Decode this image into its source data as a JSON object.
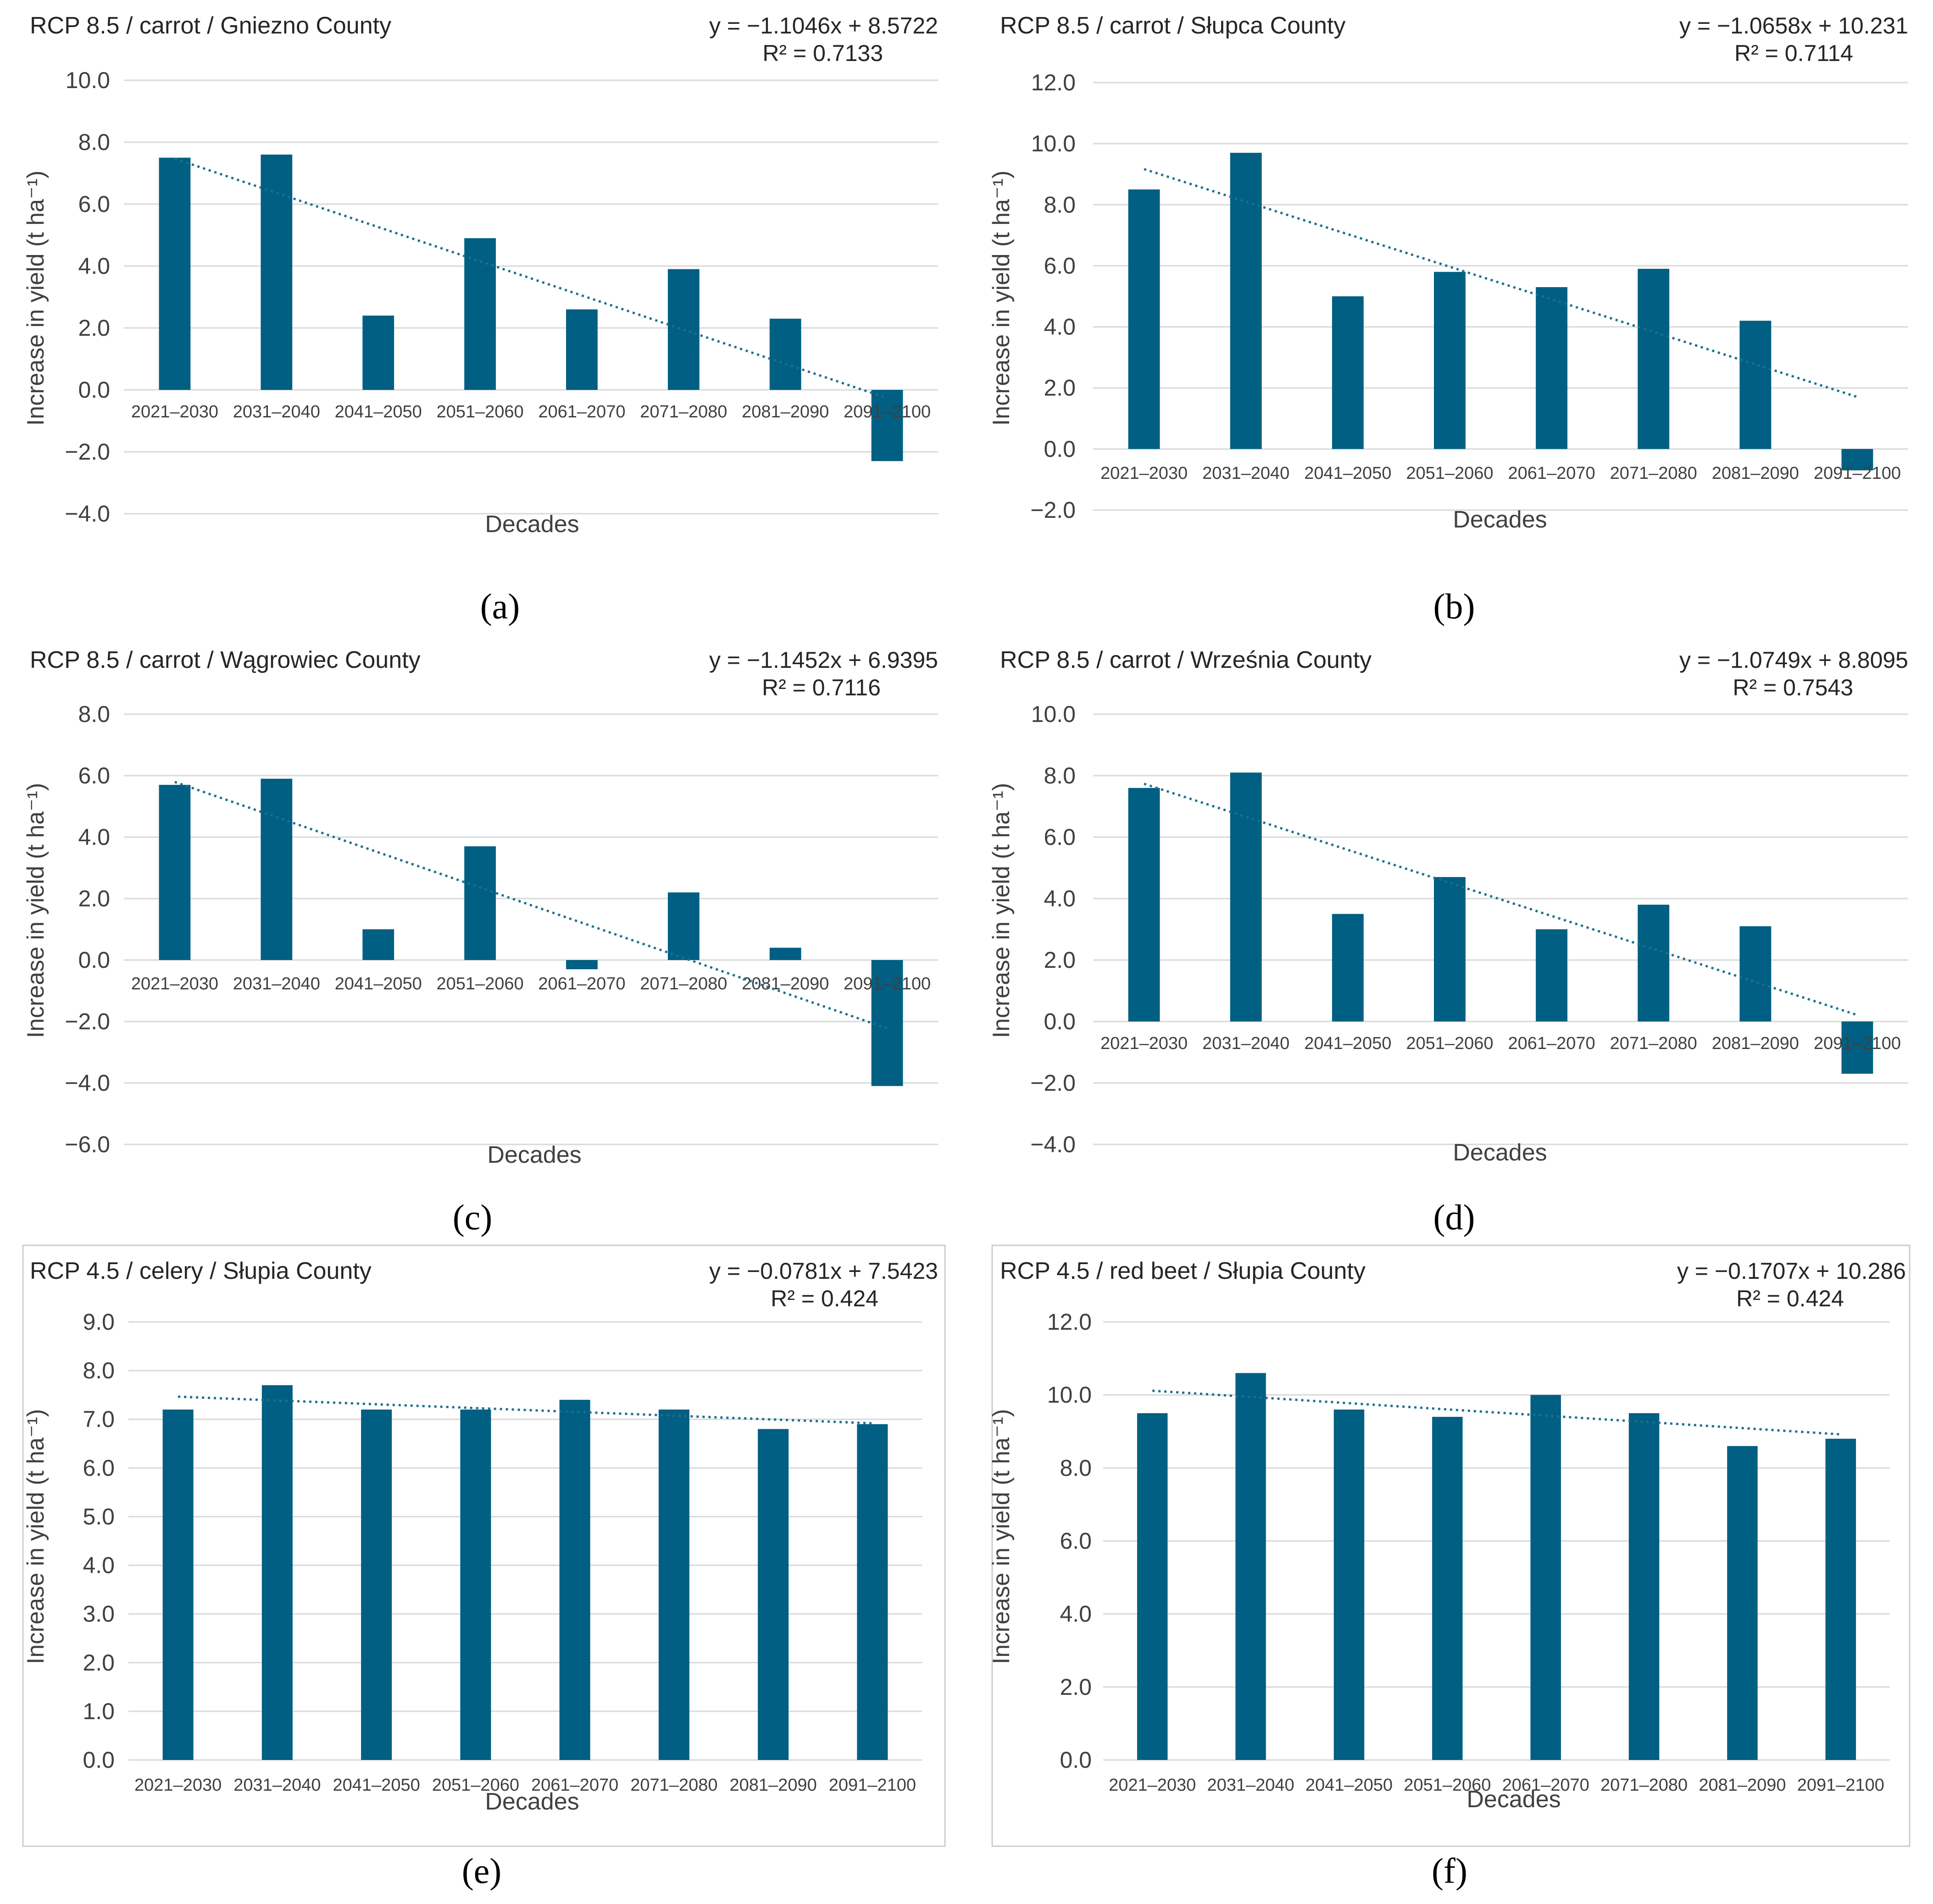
{
  "colors": {
    "bar": "#005f83",
    "trend": "#1f6f8b",
    "grid": "#d9d9d9",
    "text": "#404040"
  },
  "chart_data": [
    {
      "id": "a",
      "type": "bar",
      "panel_label": "(a)",
      "title": "RCP 8.5 / carrot / Gniezno County",
      "equation": "y = −1.1046x + 8.5722",
      "r2": "R² = 0.7133",
      "trend": {
        "slope": -1.1046,
        "intercept": 8.5722
      },
      "xlabel": "Decades",
      "ylabel": "Increase in yield (t ha⁻¹)",
      "categories": [
        "2021–2030",
        "2031–2040",
        "2041–2050",
        "2051–2060",
        "2061–2070",
        "2071–2080",
        "2081–2090",
        "2091–2100"
      ],
      "values": [
        7.5,
        7.6,
        2.4,
        4.9,
        2.6,
        3.9,
        2.3,
        -2.3
      ],
      "ylim": [
        -4,
        10
      ],
      "ystep": 2,
      "yticklabels": [
        "−4.0",
        "−2.0",
        "0.0",
        "2.0",
        "4.0",
        "6.0",
        "8.0",
        "10.0"
      ]
    },
    {
      "id": "b",
      "type": "bar",
      "panel_label": "(b)",
      "title": "RCP 8.5 / carrot / Słupca County",
      "equation": "y = −1.0658x + 10.231",
      "r2": "R² = 0.7114",
      "trend": {
        "slope": -1.0658,
        "intercept": 10.231
      },
      "xlabel": "Decades",
      "ylabel": "Increase in yield (t ha⁻¹)",
      "categories": [
        "2021–2030",
        "2031–2040",
        "2041–2050",
        "2051–2060",
        "2061–2070",
        "2071–2080",
        "2081–2090",
        "2091–2100"
      ],
      "values": [
        8.5,
        9.7,
        5.0,
        5.8,
        5.3,
        5.9,
        4.2,
        -0.7
      ],
      "ylim": [
        -2,
        12
      ],
      "ystep": 2,
      "yticklabels": [
        "−2.0",
        "0.0",
        "2.0",
        "4.0",
        "6.0",
        "8.0",
        "10.0",
        "12.0"
      ]
    },
    {
      "id": "c",
      "type": "bar",
      "panel_label": "(c)",
      "title": "RCP 8.5 / carrot / Wągrowiec County",
      "equation": "y = −1.1452x + 6.9395",
      "r2": "R² = 0.7116",
      "trend": {
        "slope": -1.1452,
        "intercept": 6.9395
      },
      "xlabel": "Decades",
      "ylabel": "Increase in yield (t ha⁻¹)",
      "categories": [
        "2021–2030",
        "2031–2040",
        "2041–2050",
        "2051–2060",
        "2061–2070",
        "2071–2080",
        "2081–2090",
        "2091–2100"
      ],
      "values": [
        5.7,
        5.9,
        1.0,
        3.7,
        -0.3,
        2.2,
        0.4,
        -4.1
      ],
      "ylim": [
        -6,
        8
      ],
      "ystep": 2,
      "yticklabels": [
        "−6.0",
        "−4.0",
        "−2.0",
        "0.0",
        "2.0",
        "4.0",
        "6.0",
        "8.0"
      ]
    },
    {
      "id": "d",
      "type": "bar",
      "panel_label": "(d)",
      "title": "RCP 8.5 / carrot / Września County",
      "equation": "y = −1.0749x + 8.8095",
      "r2": "R² = 0.7543",
      "trend": {
        "slope": -1.0749,
        "intercept": 8.8095
      },
      "xlabel": "Decades",
      "ylabel": "Increase in yield (t ha⁻¹)",
      "categories": [
        "2021–2030",
        "2031–2040",
        "2041–2050",
        "2051–2060",
        "2061–2070",
        "2071–2080",
        "2081–2090",
        "2091–2100"
      ],
      "values": [
        7.6,
        8.1,
        3.5,
        4.7,
        3.0,
        3.8,
        3.1,
        -1.7
      ],
      "ylim": [
        -4,
        10
      ],
      "ystep": 2,
      "yticklabels": [
        "−4.0",
        "−2.0",
        "0.0",
        "2.0",
        "4.0",
        "6.0",
        "8.0",
        "10.0"
      ]
    },
    {
      "id": "e",
      "type": "bar",
      "panel_label": "(e)",
      "title": "RCP 4.5  / celery / Słupia County",
      "equation": "y = −0.0781x + 7.5423",
      "r2": "R² = 0.424",
      "trend": {
        "slope": -0.0781,
        "intercept": 7.5423
      },
      "xlabel": "Decades",
      "ylabel": "Increase in yield (t ha⁻¹)",
      "categories": [
        "2021–2030",
        "2031–2040",
        "2041–2050",
        "2051–2060",
        "2061–2070",
        "2071–2080",
        "2081–2090",
        "2091–2100"
      ],
      "values": [
        7.2,
        7.7,
        7.2,
        7.2,
        7.4,
        7.2,
        6.8,
        6.9
      ],
      "ylim": [
        0,
        9
      ],
      "ystep": 1,
      "yticklabels": [
        "0.0",
        "1.0",
        "2.0",
        "3.0",
        "4.0",
        "5.0",
        "6.0",
        "7.0",
        "8.0",
        "9.0"
      ]
    },
    {
      "id": "f",
      "type": "bar",
      "panel_label": "(f)",
      "title": "RCP 4.5 / red beet / Słupia County",
      "equation": "y = −0.1707x + 10.286",
      "r2": "R² = 0.424",
      "trend": {
        "slope": -0.1707,
        "intercept": 10.286
      },
      "xlabel": "Decades",
      "ylabel": "Increase in yield (t ha⁻¹)",
      "categories": [
        "2021–2030",
        "2031–2040",
        "2041–2050",
        "2051–2060",
        "2061–2070",
        "2071–2080",
        "2081–2090",
        "2091–2100"
      ],
      "values": [
        9.5,
        10.6,
        9.6,
        9.4,
        10.0,
        9.5,
        8.6,
        8.8
      ],
      "ylim": [
        0,
        12
      ],
      "ystep": 2,
      "yticklabels": [
        "0.0",
        "2.0",
        "4.0",
        "6.0",
        "8.0",
        "10.0",
        "12.0"
      ]
    }
  ]
}
